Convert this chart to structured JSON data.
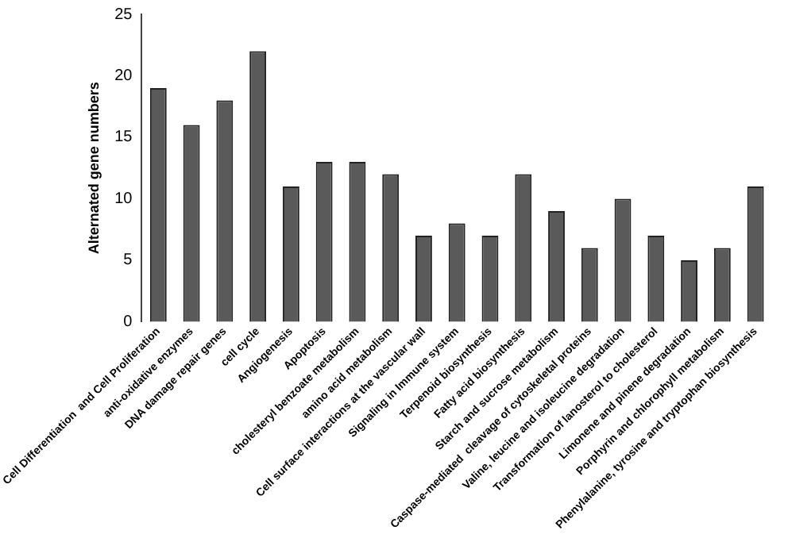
{
  "chart_data": {
    "type": "bar",
    "ylabel": "Alternated gene numbers",
    "categories": [
      "Cell Differentiation  and Cell Proliferation",
      "anti-oxidative enzymes",
      "DNA damage repair genes",
      "cell cycle",
      "Angiogenesis",
      "Apoptosis",
      "cholesteryl benzoate metabolism",
      "amino acid metabolism",
      "Cell surface interactions at the vascular wall",
      "Signaling in Immune system",
      "Terpenoid biosynthesis",
      "Fatty acid biosynthesis",
      "Starch and sucrose metabolism",
      "Caspase-mediated  cleavage of cytoskeletal proteins",
      "Valine, leucine and isoleucine degradation",
      "Transformation of lanosterol to cholesterol",
      "Limonene and pinene degradation",
      "Porphyrin and chlorophyll metabolism",
      "Phenylalanine, tyrosine and tryptophan biosynthesis"
    ],
    "values": [
      19,
      16,
      18,
      22,
      11,
      13,
      13,
      12,
      7,
      8,
      7,
      12,
      9,
      6,
      10,
      7,
      5,
      6,
      11
    ],
    "color": "#5a5a5a",
    "ylim": [
      0,
      25
    ],
    "yticks": [
      0,
      5,
      10,
      15,
      20,
      25
    ],
    "grid": false,
    "legend": false
  }
}
